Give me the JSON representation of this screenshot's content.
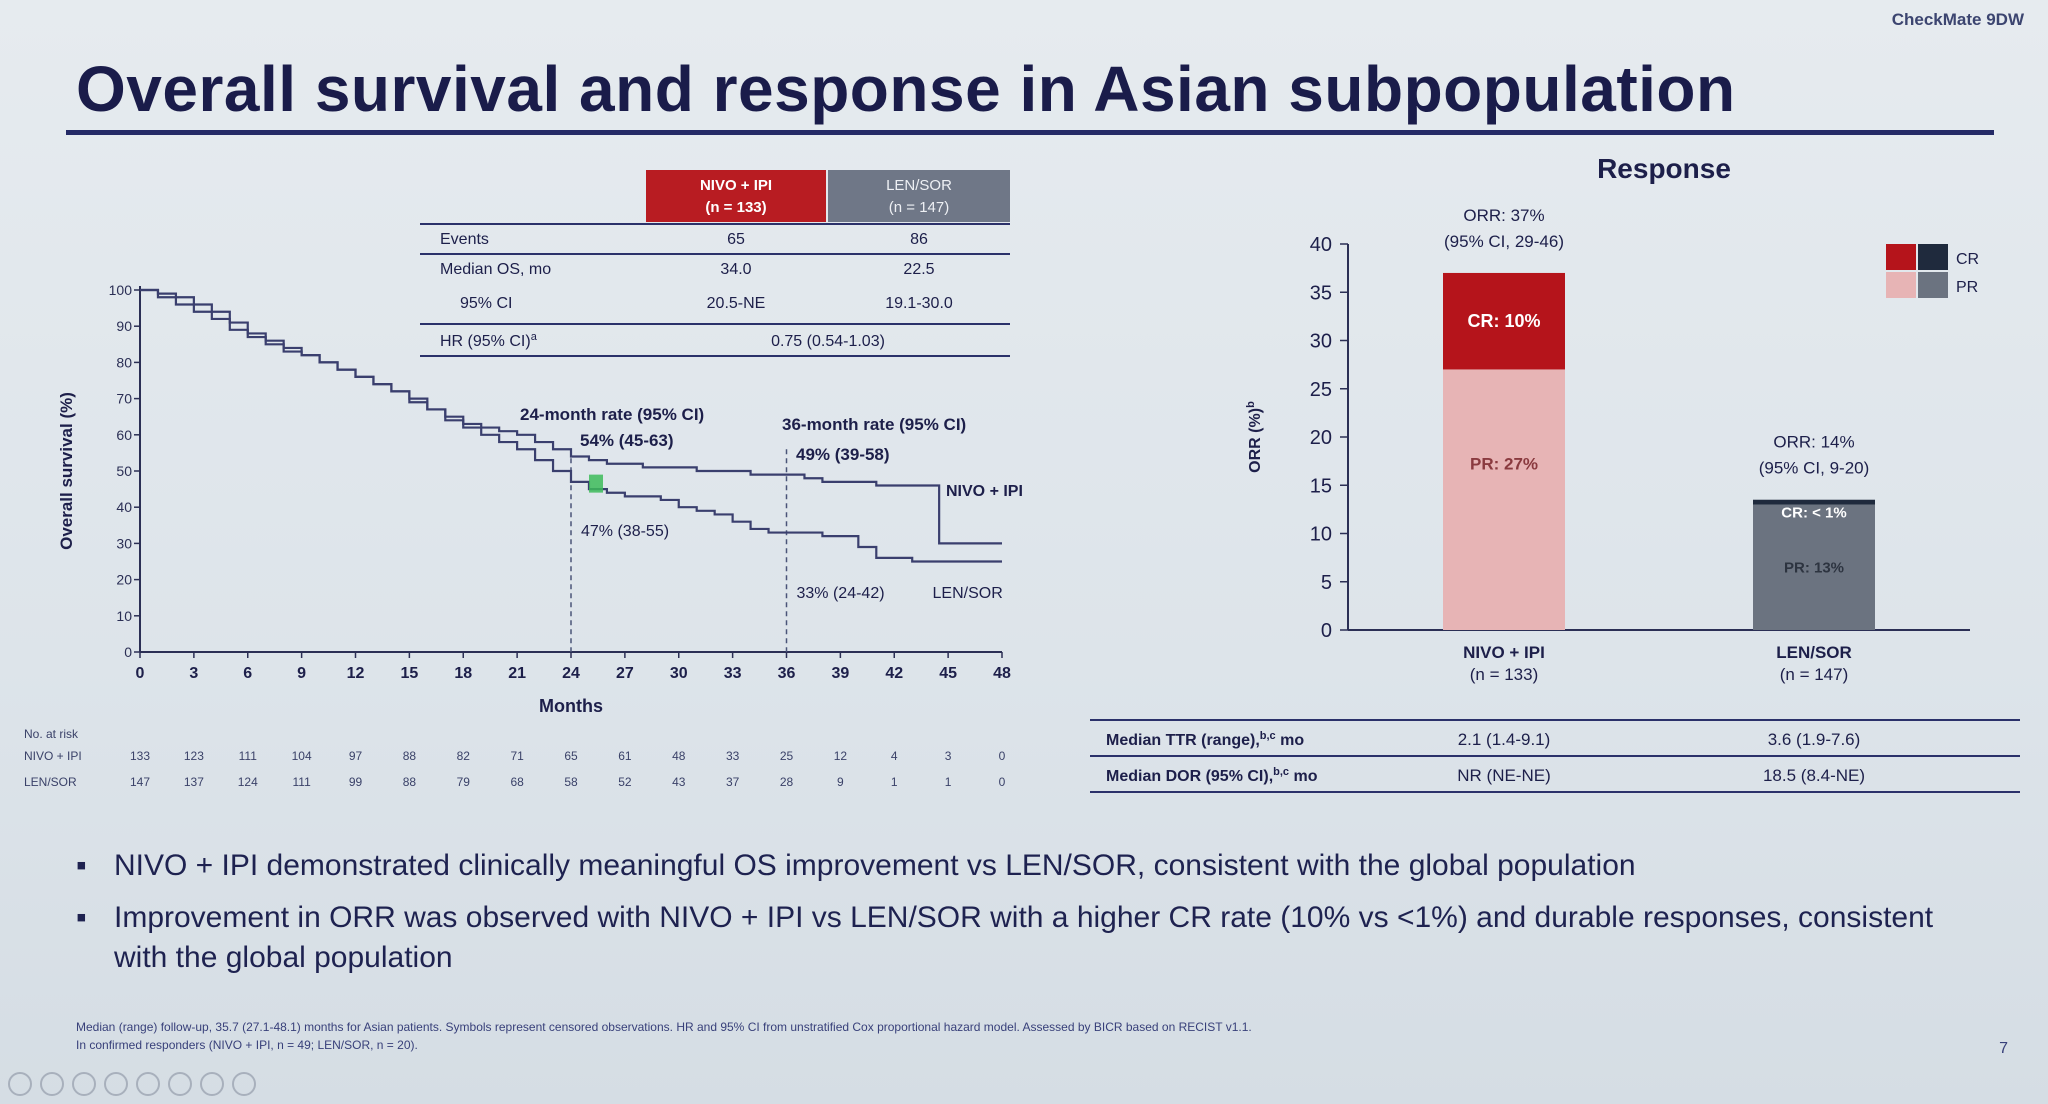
{
  "header": {
    "brand": "CheckMate 9DW",
    "title": "Overall survival and response in Asian subpopulation"
  },
  "os_table": {
    "col1": [
      "NIVO + IPI",
      "(n = 133)"
    ],
    "col2": [
      "LEN/SOR",
      "(n = 147)"
    ],
    "rows": [
      {
        "label": "Events",
        "v1": "65",
        "v2": "86"
      },
      {
        "label": "Median OS, mo",
        "v1": "34.0",
        "v2": "22.5"
      },
      {
        "label": "95% CI",
        "v1": "20.5-NE",
        "v2": "19.1-30.0"
      }
    ],
    "hr_label": "HR (95% CI)",
    "hr_sup": "a",
    "hr_value": "0.75 (0.54-1.03)"
  },
  "response": {
    "title": "Response",
    "legend": [
      "CR",
      "PR"
    ],
    "bar1": {
      "orr": "ORR: 37%",
      "ci": "(95% CI, 29-46)",
      "cr_label": "CR: 10%",
      "pr_label": "PR: 27%",
      "name": "NIVO + IPI",
      "n": "(n = 133)"
    },
    "bar2": {
      "orr": "ORR: 14%",
      "ci": "(95% CI, 9-20)",
      "cr_label": "CR: < 1%",
      "pr_label": "PR: 13%",
      "name": "LEN/SOR",
      "n": "(n = 147)"
    },
    "rows": [
      {
        "label": "Median TTR (range),",
        "sup": "b,c",
        "unit": "mo",
        "v1": "2.1 (1.4-9.1)",
        "v2": "3.6 (1.9-7.6)"
      },
      {
        "label": "Median DOR (95% CI),",
        "sup": "b,c",
        "unit": "mo",
        "v1": "NR (NE-NE)",
        "v2": "18.5 (8.4-NE)"
      }
    ]
  },
  "risk_table": {
    "title": "No. at risk",
    "rows": [
      {
        "label": "NIVO + IPI",
        "values": [
          "133",
          "123",
          "111",
          "104",
          "97",
          "88",
          "82",
          "71",
          "65",
          "61",
          "48",
          "33",
          "25",
          "12",
          "4",
          "3",
          "0"
        ]
      },
      {
        "label": "LEN/SOR",
        "values": [
          "147",
          "137",
          "124",
          "111",
          "99",
          "88",
          "79",
          "68",
          "58",
          "52",
          "43",
          "37",
          "28",
          "9",
          "1",
          "1",
          "0"
        ]
      }
    ]
  },
  "bullets": [
    "NIVO + IPI demonstrated clinically meaningful OS improvement vs LEN/SOR, consistent with the global population",
    "Improvement in ORR was observed with NIVO + IPI vs LEN/SOR with a higher CR rate (10% vs <1%) and durable responses, consistent with the global population"
  ],
  "footnote": [
    "Median (range) follow-up, 35.7 (27.1-48.1) months for Asian patients. Symbols represent censored observations. HR and 95% CI from unstratified Cox proportional hazard model. Assessed by BICR based on RECIST v1.1.",
    "In confirmed responders (NIVO + IPI, n = 49; LEN/SOR, n = 20)."
  ],
  "page_number": "7",
  "chart_data": [
    {
      "type": "line",
      "title": "",
      "xlabel": "Months",
      "ylabel": "Overall survival (%)",
      "xlim": [
        0,
        48
      ],
      "ylim": [
        0,
        100
      ],
      "xticks": [
        0,
        3,
        6,
        9,
        12,
        15,
        18,
        21,
        24,
        27,
        30,
        33,
        36,
        39,
        42,
        45,
        48
      ],
      "yticks": [
        0,
        10,
        20,
        30,
        40,
        50,
        60,
        70,
        80,
        90,
        100
      ],
      "series": [
        {
          "name": "NIVO + IPI",
          "color": "#3a3f6e",
          "x": [
            0,
            1,
            2,
            3,
            4,
            5,
            6,
            7,
            8,
            9,
            10,
            11,
            12,
            13,
            14,
            15,
            16,
            17,
            18,
            19,
            20,
            21,
            22,
            23,
            24,
            25,
            26,
            27,
            28,
            29,
            30,
            31,
            32,
            33,
            34,
            35,
            36,
            37,
            38,
            39,
            40,
            41,
            42,
            43,
            44,
            44.5,
            45,
            46,
            47,
            48
          ],
          "y": [
            100,
            99,
            98,
            96,
            94,
            91,
            88,
            86,
            84,
            82,
            80,
            78,
            76,
            74,
            72,
            70,
            67,
            65,
            63,
            62,
            61,
            60,
            58,
            56,
            54,
            53,
            52,
            52,
            51,
            51,
            51,
            50,
            50,
            50,
            49,
            49,
            49,
            48,
            47,
            47,
            47,
            46,
            46,
            46,
            46,
            30,
            30,
            30,
            30,
            30
          ]
        },
        {
          "name": "LEN/SOR",
          "color": "#3a3f6e",
          "x": [
            0,
            1,
            2,
            3,
            4,
            5,
            6,
            7,
            8,
            9,
            10,
            11,
            12,
            13,
            14,
            15,
            16,
            17,
            18,
            19,
            20,
            21,
            22,
            23,
            24,
            25,
            26,
            27,
            28,
            29,
            30,
            31,
            32,
            33,
            34,
            35,
            36,
            37,
            38,
            39,
            40,
            41,
            42,
            43,
            44,
            45,
            46,
            47,
            48
          ],
          "y": [
            100,
            98,
            96,
            94,
            92,
            89,
            87,
            85,
            83,
            82,
            80,
            78,
            76,
            74,
            72,
            69,
            67,
            64,
            62,
            60,
            58,
            56,
            53,
            50,
            47,
            45,
            44,
            43,
            43,
            42,
            40,
            39,
            38,
            36,
            34,
            33,
            33,
            33,
            32,
            32,
            29,
            26,
            26,
            25,
            25,
            25,
            25,
            25,
            25
          ]
        }
      ],
      "annotations": [
        {
          "text": "24-month rate (95% CI)",
          "x": 24
        },
        {
          "text": "54% (45-63)",
          "x": 24,
          "y": 54
        },
        {
          "text": "47% (38-55)",
          "x": 24,
          "y": 47
        },
        {
          "text": "36-month rate (95% CI)",
          "x": 36
        },
        {
          "text": "49% (39-58)",
          "x": 36,
          "y": 49
        },
        {
          "text": "33% (24-42)",
          "x": 36,
          "y": 33
        }
      ],
      "series_labels": [
        "NIVO + IPI",
        "LEN/SOR"
      ]
    },
    {
      "type": "bar",
      "title": "Response",
      "ylabel": "ORR (%)",
      "ylabel_sup": "b",
      "ylim": [
        0,
        40
      ],
      "yticks": [
        0,
        5,
        10,
        15,
        20,
        25,
        30,
        35,
        40
      ],
      "categories": [
        "NIVO + IPI (n = 133)",
        "LEN/SOR (n = 147)"
      ],
      "series": [
        {
          "name": "CR",
          "colors": [
            "#b5141b",
            "#1f2a3d"
          ],
          "values": [
            10,
            0.5
          ]
        },
        {
          "name": "PR",
          "colors": [
            "#e7b4b5",
            "#6b7380"
          ],
          "values": [
            27,
            13
          ]
        }
      ],
      "legend": "top-right"
    }
  ]
}
